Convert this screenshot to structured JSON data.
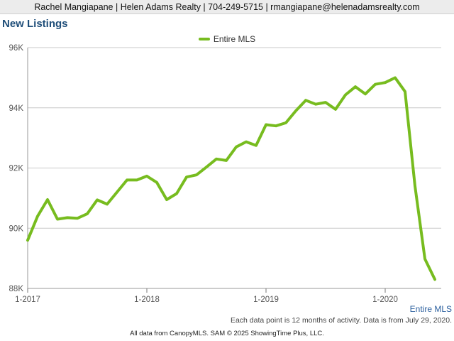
{
  "header": {
    "banner": "Rachel Mangiapane | Helen Adams Realty | 704-249-5715 | rmangiapane@helenadamsrealty.com"
  },
  "chart": {
    "title": "New Listings",
    "series_label": "Entire MLS",
    "footnote": "Each data point is 12 months of activity. Data is from July 29, 2020.",
    "source": "All data from CanopyMLS. SAM © 2025 ShowingTime Plus, LLC."
  },
  "colors": {
    "series": "#77bc1f",
    "grid": "#c8c8c8",
    "title": "#1f4e79"
  },
  "chart_data": {
    "type": "line",
    "title": "New Listings",
    "xlabel": "",
    "ylabel": "",
    "x_tick_labels": [
      "1-2017",
      "1-2018",
      "1-2019",
      "1-2020"
    ],
    "y_tick_values": [
      88000,
      90000,
      92000,
      94000,
      96000
    ],
    "y_tick_labels": [
      "88K",
      "90K",
      "92K",
      "94K",
      "96K"
    ],
    "ylim": [
      88000,
      96000
    ],
    "legend": "top-center",
    "grid": true,
    "x": [
      "1-2017",
      "2-2017",
      "3-2017",
      "4-2017",
      "5-2017",
      "6-2017",
      "7-2017",
      "8-2017",
      "9-2017",
      "10-2017",
      "11-2017",
      "12-2017",
      "1-2018",
      "2-2018",
      "3-2018",
      "4-2018",
      "5-2018",
      "6-2018",
      "7-2018",
      "8-2018",
      "9-2018",
      "10-2018",
      "11-2018",
      "12-2018",
      "1-2019",
      "2-2019",
      "3-2019",
      "4-2019",
      "5-2019",
      "6-2019",
      "7-2019",
      "8-2019",
      "9-2019",
      "10-2019",
      "11-2019",
      "12-2019",
      "1-2020",
      "2-2020",
      "3-2020",
      "4-2020",
      "5-2020",
      "6-2020"
    ],
    "series": [
      {
        "name": "Entire MLS",
        "color": "#77bc1f",
        "values": [
          89600,
          90400,
          90950,
          90300,
          90350,
          90330,
          90480,
          90940,
          90800,
          91200,
          91600,
          91600,
          91730,
          91520,
          90950,
          91150,
          91700,
          91770,
          92030,
          92300,
          92250,
          92700,
          92870,
          92750,
          93440,
          93400,
          93500,
          93900,
          94250,
          94120,
          94180,
          93950,
          94430,
          94700,
          94460,
          94780,
          94840,
          95000,
          94540,
          91400,
          88980,
          88300
        ]
      }
    ]
  }
}
